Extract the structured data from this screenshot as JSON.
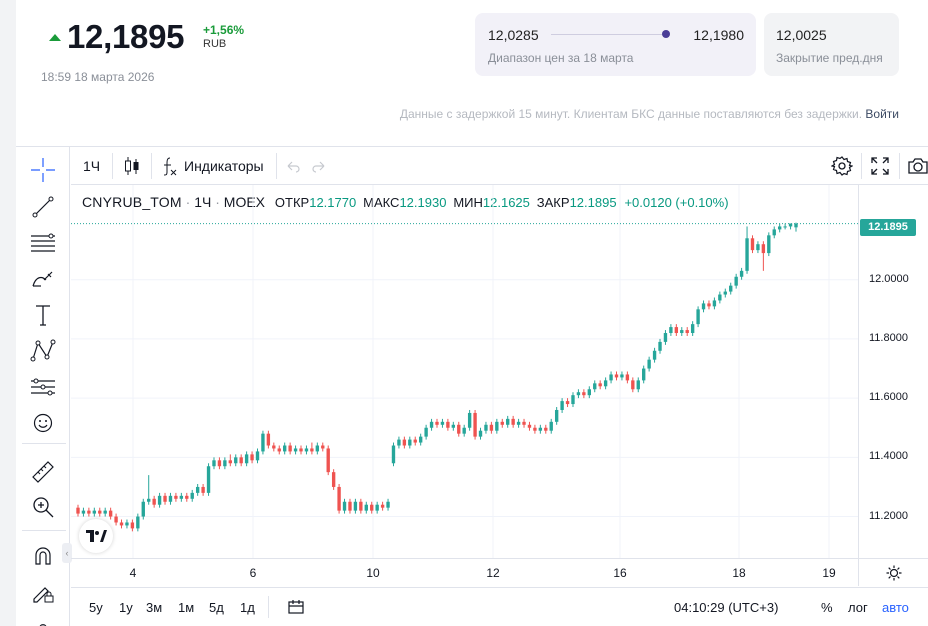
{
  "header": {
    "price": "12,1895",
    "change": "+1,56%",
    "currency": "RUB",
    "timestamp": "18:59 18 марта 2026",
    "range_low": "12,0285",
    "range_high": "12,1980",
    "range_label": "Диапазон цен за 18 марта",
    "range_position": 0.98,
    "prev_close": "12,0025",
    "prev_close_label": "Закрытие пред.дня",
    "delay_note": "Данные с задержкой 15 минут. Клиентам БКС данные поставляются без задержки.",
    "login_link": "Войти",
    "colors": {
      "up": "#1a9b3a",
      "range_dot": "#4a3d97"
    }
  },
  "toolbar": {
    "interval": "1Ч",
    "indicators": "Индикаторы"
  },
  "legend": {
    "symbol": "CNYRUB_TOM",
    "interval": "1Ч",
    "exchange": "MOEX",
    "open_label": "ОТКР",
    "open": "12.1770",
    "high_label": "МАКС",
    "high": "12.1930",
    "low_label": "МИН",
    "low": "12.1625",
    "close_label": "ЗАКР",
    "close": "12.1895",
    "change": "+0.0120 (+0.10%)"
  },
  "bottom_bar": {
    "ranges": [
      "5у",
      "1у",
      "3м",
      "1м",
      "5д",
      "1д"
    ],
    "clock": "04:10:29 (UTC+3)",
    "percent": "%",
    "log": "лог",
    "auto": "авто"
  },
  "chart_data": {
    "type": "candlestick",
    "symbol": "CNYRUB_TOM",
    "interval": "1Ч",
    "colors": {
      "up": "#26a69a",
      "down": "#ef5350"
    },
    "y_ticks": [
      "12.0000",
      "11.8000",
      "11.6000",
      "11.4000",
      "11.2000"
    ],
    "ylim": [
      11.06,
      12.32
    ],
    "x_ticks": [
      "4",
      "6",
      "10",
      "12",
      "16",
      "18",
      "19"
    ],
    "last_price": "12.1895",
    "candles": [
      [
        11.23,
        11.21,
        11.24,
        11.2
      ],
      [
        11.21,
        11.22,
        11.23,
        11.2
      ],
      [
        11.22,
        11.21,
        11.23,
        11.2
      ],
      [
        11.21,
        11.22,
        11.23,
        11.2
      ],
      [
        11.22,
        11.21,
        11.23,
        11.2
      ],
      [
        11.21,
        11.22,
        11.23,
        11.2
      ],
      [
        11.22,
        11.2,
        11.23,
        11.19
      ],
      [
        11.2,
        11.18,
        11.21,
        11.17
      ],
      [
        11.18,
        11.17,
        11.19,
        11.16
      ],
      [
        11.17,
        11.18,
        11.19,
        11.16
      ],
      [
        11.18,
        11.16,
        11.19,
        11.15
      ],
      [
        11.16,
        11.2,
        11.21,
        11.15
      ],
      [
        11.2,
        11.25,
        11.26,
        11.19
      ],
      [
        11.25,
        11.26,
        11.34,
        11.24
      ],
      [
        11.26,
        11.24,
        11.27,
        11.23
      ],
      [
        11.24,
        11.27,
        11.28,
        11.23
      ],
      [
        11.27,
        11.25,
        11.28,
        11.24
      ],
      [
        11.25,
        11.27,
        11.28,
        11.24
      ],
      [
        11.27,
        11.26,
        11.28,
        11.25
      ],
      [
        11.26,
        11.27,
        11.28,
        11.25
      ],
      [
        11.27,
        11.26,
        11.28,
        11.25
      ],
      [
        11.26,
        11.28,
        11.29,
        11.25
      ],
      [
        11.28,
        11.3,
        11.31,
        11.27
      ],
      [
        11.3,
        11.28,
        11.31,
        11.27
      ],
      [
        11.28,
        11.37,
        11.38,
        11.27
      ],
      [
        11.37,
        11.39,
        11.4,
        11.36
      ],
      [
        11.39,
        11.37,
        11.4,
        11.36
      ],
      [
        11.37,
        11.39,
        11.4,
        11.36
      ],
      [
        11.39,
        11.38,
        11.41,
        11.37
      ],
      [
        11.38,
        11.4,
        11.41,
        11.37
      ],
      [
        11.4,
        11.38,
        11.41,
        11.37
      ],
      [
        11.38,
        11.41,
        11.42,
        11.37
      ],
      [
        11.41,
        11.39,
        11.42,
        11.38
      ],
      [
        11.39,
        11.42,
        11.43,
        11.38
      ],
      [
        11.42,
        11.48,
        11.49,
        11.41
      ],
      [
        11.48,
        11.44,
        11.49,
        11.43
      ],
      [
        11.44,
        11.43,
        11.45,
        11.42
      ],
      [
        11.43,
        11.42,
        11.44,
        11.41
      ],
      [
        11.42,
        11.44,
        11.45,
        11.41
      ],
      [
        11.44,
        11.42,
        11.45,
        11.41
      ],
      [
        11.42,
        11.43,
        11.44,
        11.41
      ],
      [
        11.43,
        11.42,
        11.44,
        11.41
      ],
      [
        11.42,
        11.43,
        11.44,
        11.41
      ],
      [
        11.43,
        11.42,
        11.45,
        11.41
      ],
      [
        11.42,
        11.44,
        11.45,
        11.41
      ],
      [
        11.44,
        11.43,
        11.45,
        11.42
      ],
      [
        11.43,
        11.35,
        11.44,
        11.34
      ],
      [
        11.35,
        11.3,
        11.36,
        11.29
      ],
      [
        11.3,
        11.22,
        11.31,
        11.21
      ],
      [
        11.22,
        11.25,
        11.26,
        11.21
      ],
      [
        11.25,
        11.22,
        11.26,
        11.21
      ],
      [
        11.22,
        11.25,
        11.26,
        11.21
      ],
      [
        11.25,
        11.22,
        11.26,
        11.21
      ],
      [
        11.22,
        11.24,
        11.25,
        11.21
      ],
      [
        11.24,
        11.22,
        11.25,
        11.21
      ],
      [
        11.22,
        11.24,
        11.25,
        11.21
      ],
      [
        11.24,
        11.23,
        11.25,
        11.22
      ],
      [
        11.23,
        11.25,
        11.26,
        11.22
      ],
      [
        11.38,
        11.44,
        11.45,
        11.37
      ],
      [
        11.44,
        11.46,
        11.47,
        11.43
      ],
      [
        11.46,
        11.44,
        11.47,
        11.43
      ],
      [
        11.44,
        11.46,
        11.47,
        11.43
      ],
      [
        11.46,
        11.45,
        11.47,
        11.44
      ],
      [
        11.45,
        11.47,
        11.48,
        11.44
      ],
      [
        11.47,
        11.5,
        11.51,
        11.46
      ],
      [
        11.5,
        11.52,
        11.53,
        11.49
      ],
      [
        11.52,
        11.51,
        11.53,
        11.5
      ],
      [
        11.51,
        11.52,
        11.53,
        11.5
      ],
      [
        11.52,
        11.5,
        11.53,
        11.49
      ],
      [
        11.5,
        11.51,
        11.52,
        11.49
      ],
      [
        11.51,
        11.48,
        11.52,
        11.47
      ],
      [
        11.48,
        11.5,
        11.51,
        11.47
      ],
      [
        11.5,
        11.55,
        11.56,
        11.49
      ],
      [
        11.55,
        11.47,
        11.56,
        11.46
      ],
      [
        11.47,
        11.49,
        11.5,
        11.46
      ],
      [
        11.49,
        11.51,
        11.52,
        11.48
      ],
      [
        11.51,
        11.49,
        11.52,
        11.48
      ],
      [
        11.49,
        11.52,
        11.53,
        11.48
      ],
      [
        11.52,
        11.51,
        11.53,
        11.5
      ],
      [
        11.51,
        11.53,
        11.54,
        11.5
      ],
      [
        11.53,
        11.51,
        11.54,
        11.5
      ],
      [
        11.51,
        11.52,
        11.53,
        11.5
      ],
      [
        11.52,
        11.51,
        11.53,
        11.5
      ],
      [
        11.51,
        11.5,
        11.52,
        11.49
      ],
      [
        11.5,
        11.49,
        11.51,
        11.48
      ],
      [
        11.49,
        11.5,
        11.51,
        11.48
      ],
      [
        11.5,
        11.49,
        11.51,
        11.48
      ],
      [
        11.49,
        11.52,
        11.53,
        11.48
      ],
      [
        11.52,
        11.56,
        11.57,
        11.51
      ],
      [
        11.56,
        11.59,
        11.6,
        11.55
      ],
      [
        11.59,
        11.58,
        11.6,
        11.57
      ],
      [
        11.58,
        11.61,
        11.62,
        11.57
      ],
      [
        11.61,
        11.62,
        11.63,
        11.6
      ],
      [
        11.62,
        11.61,
        11.63,
        11.6
      ],
      [
        11.61,
        11.63,
        11.64,
        11.6
      ],
      [
        11.63,
        11.65,
        11.66,
        11.62
      ],
      [
        11.65,
        11.64,
        11.66,
        11.63
      ],
      [
        11.64,
        11.66,
        11.67,
        11.63
      ],
      [
        11.66,
        11.68,
        11.69,
        11.65
      ],
      [
        11.68,
        11.67,
        11.69,
        11.66
      ],
      [
        11.67,
        11.68,
        11.69,
        11.66
      ],
      [
        11.68,
        11.66,
        11.69,
        11.65
      ],
      [
        11.66,
        11.63,
        11.67,
        11.62
      ],
      [
        11.63,
        11.66,
        11.67,
        11.62
      ],
      [
        11.66,
        11.7,
        11.71,
        11.65
      ],
      [
        11.7,
        11.73,
        11.74,
        11.69
      ],
      [
        11.73,
        11.76,
        11.77,
        11.72
      ],
      [
        11.76,
        11.79,
        11.8,
        11.75
      ],
      [
        11.79,
        11.82,
        11.83,
        11.78
      ],
      [
        11.82,
        11.84,
        11.85,
        11.81
      ],
      [
        11.84,
        11.82,
        11.85,
        11.81
      ],
      [
        11.82,
        11.83,
        11.84,
        11.81
      ],
      [
        11.83,
        11.82,
        11.84,
        11.81
      ],
      [
        11.82,
        11.85,
        11.86,
        11.81
      ],
      [
        11.85,
        11.9,
        11.91,
        11.84
      ],
      [
        11.9,
        11.92,
        11.93,
        11.89
      ],
      [
        11.92,
        11.91,
        11.93,
        11.9
      ],
      [
        11.91,
        11.93,
        11.94,
        11.9
      ],
      [
        11.93,
        11.95,
        11.96,
        11.92
      ],
      [
        11.95,
        11.96,
        11.97,
        11.94
      ],
      [
        11.96,
        11.98,
        11.99,
        11.95
      ],
      [
        11.98,
        12.01,
        12.02,
        11.97
      ],
      [
        12.01,
        12.03,
        12.04,
        12.0
      ],
      [
        12.03,
        12.14,
        12.18,
        12.02
      ],
      [
        12.14,
        12.1,
        12.15,
        12.09
      ],
      [
        12.1,
        12.12,
        12.13,
        12.09
      ],
      [
        12.12,
        12.09,
        12.13,
        12.03
      ],
      [
        12.09,
        12.15,
        12.16,
        12.08
      ],
      [
        12.15,
        12.17,
        12.18,
        12.14
      ],
      [
        12.17,
        12.18,
        12.19,
        12.16
      ],
      [
        12.18,
        12.18,
        12.19,
        12.17
      ],
      [
        12.18,
        12.19,
        12.19,
        12.17
      ],
      [
        12.177,
        12.1895,
        12.193,
        12.1625
      ]
    ]
  }
}
